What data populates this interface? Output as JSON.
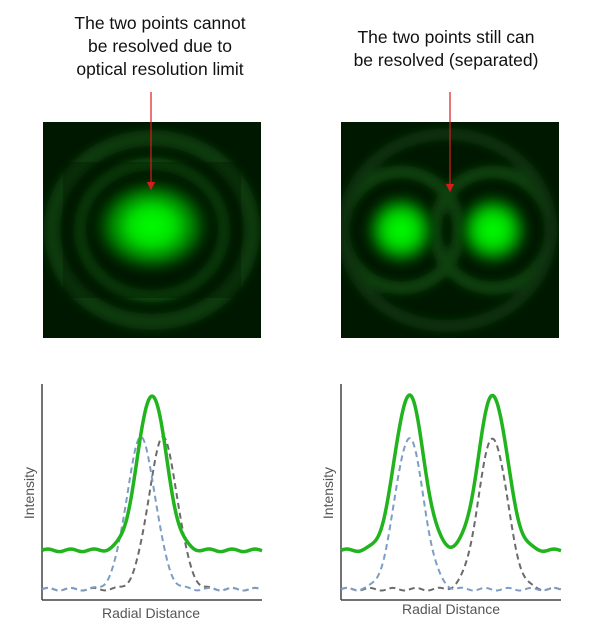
{
  "captions": {
    "left": "The two points cannot\nbe resolved due to\noptical resolution limit",
    "right": "The two points still can\nbe resolved (separated)"
  },
  "colors": {
    "sum_curve": "#22b41e",
    "psf_a": "#7d9ec4",
    "psf_b": "#6b6b6b",
    "arrow": "#d81c1c",
    "glow": "#00e600",
    "pattern_bg": "#001a00"
  },
  "plots": {
    "left": {
      "ylabel": "Intensity",
      "xlabel": "Radial Distance"
    },
    "right": {
      "ylabel": "Intensity",
      "xlabel": "Radial Distance"
    }
  },
  "chart_data": [
    {
      "type": "line",
      "state": "unresolved",
      "ylabel": "Intensity",
      "xlabel": "Radial Distance",
      "x_range": [
        0,
        1
      ],
      "y_range": [
        0,
        1
      ],
      "grid": false,
      "series": [
        {
          "role": "summed-intensity",
          "style": "solid",
          "color": "#22b41e",
          "baseline": 0.23,
          "peaks": [
            {
              "x": 0.5,
              "y": 0.95
            }
          ]
        },
        {
          "role": "point-source-a",
          "style": "dashed",
          "color": "#7d9ec4",
          "baseline": 0.05,
          "peaks": [
            {
              "x": 0.45,
              "y": 0.75
            }
          ]
        },
        {
          "role": "point-source-b",
          "style": "dashed",
          "color": "#6b6b6b",
          "baseline": 0.05,
          "peaks": [
            {
              "x": 0.55,
              "y": 0.75
            }
          ]
        }
      ]
    },
    {
      "type": "line",
      "state": "resolved",
      "ylabel": "Intensity",
      "xlabel": "Radial Distance",
      "x_range": [
        0,
        1
      ],
      "y_range": [
        0,
        1
      ],
      "grid": false,
      "series": [
        {
          "role": "summed-intensity",
          "style": "solid",
          "color": "#22b41e",
          "baseline": 0.23,
          "peaks": [
            {
              "x": 0.31,
              "y": 0.95
            },
            {
              "x": 0.69,
              "y": 0.95
            }
          ]
        },
        {
          "role": "point-source-a",
          "style": "dashed",
          "color": "#7d9ec4",
          "baseline": 0.05,
          "peaks": [
            {
              "x": 0.31,
              "y": 0.75
            }
          ]
        },
        {
          "role": "point-source-b",
          "style": "dashed",
          "color": "#6b6b6b",
          "baseline": 0.05,
          "peaks": [
            {
              "x": 0.69,
              "y": 0.75
            }
          ]
        }
      ]
    }
  ]
}
